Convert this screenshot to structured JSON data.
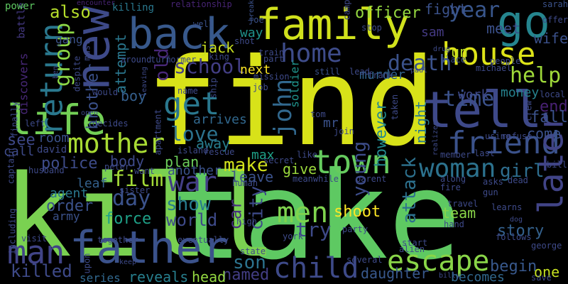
{
  "words": [
    {
      "text": "find",
      "color": "#d8e219"
    },
    {
      "text": "take",
      "color": "#5ec962"
    },
    {
      "text": "kill",
      "color": "#7ad151"
    },
    {
      "text": "father",
      "color": "#3b528b"
    },
    {
      "text": "family",
      "color": "#d0e11c"
    },
    {
      "text": "back",
      "color": "#38598c"
    },
    {
      "text": "tell",
      "color": "#3e4989"
    },
    {
      "text": "go",
      "color": "#25858e"
    },
    {
      "text": "life",
      "color": "#73d056"
    },
    {
      "text": "new",
      "color": "#3e4a89"
    },
    {
      "text": "house",
      "color": "#dde318"
    },
    {
      "text": "home",
      "color": "#3e4c8a"
    },
    {
      "text": "town",
      "color": "#65cb5e"
    },
    {
      "text": "man",
      "color": "#414487"
    },
    {
      "text": "friend",
      "color": "#3b528b"
    },
    {
      "text": "get",
      "color": "#2a788e"
    },
    {
      "text": "mother",
      "color": "#a8db34"
    },
    {
      "text": "escape",
      "color": "#89d548"
    },
    {
      "text": "later",
      "color": "#414487"
    },
    {
      "text": "return",
      "color": "#2a788e"
    },
    {
      "text": "war",
      "color": "#433e85"
    },
    {
      "text": "men",
      "color": "#7fd34e"
    },
    {
      "text": "woman",
      "color": "#2c728e"
    },
    {
      "text": "child",
      "color": "#3e4a89"
    },
    {
      "text": "death",
      "color": "#3b528b"
    },
    {
      "text": "john",
      "color": "#31688e"
    },
    {
      "text": "time",
      "color": "#3b528b"
    },
    {
      "text": "year",
      "color": "#39568c"
    },
    {
      "text": "help",
      "color": "#9fda3a"
    },
    {
      "text": "group",
      "color": "#8bd646"
    },
    {
      "text": "film",
      "color": "#a2da37"
    },
    {
      "text": "day",
      "color": "#3b528b"
    },
    {
      "text": "school",
      "color": "#433e85"
    },
    {
      "text": "love",
      "color": "#2c728e"
    },
    {
      "text": "killed",
      "color": "#3e4a89"
    },
    {
      "text": "make",
      "color": "#d2e21b"
    },
    {
      "text": "city",
      "color": "#3e4a89"
    },
    {
      "text": "try",
      "color": "#3e4a89"
    },
    {
      "text": "attack",
      "color": "#2d718e"
    },
    {
      "text": "show",
      "color": "#287c8e"
    },
    {
      "text": "girl",
      "color": "#2e6d8e"
    },
    {
      "text": "old",
      "color": "#482878"
    },
    {
      "text": "see",
      "color": "#3e4989"
    },
    {
      "text": "police",
      "color": "#3e4c8a"
    },
    {
      "text": "son",
      "color": "#2c738e"
    },
    {
      "text": "world",
      "color": "#3e4a89"
    },
    {
      "text": "young",
      "color": "#3d4d8a"
    },
    {
      "text": "car",
      "color": "#46307e"
    },
    {
      "text": "also",
      "color": "#b5de2b"
    },
    {
      "text": "brother",
      "color": "#3b518b"
    },
    {
      "text": "attempt",
      "color": "#2a778e"
    },
    {
      "text": "force",
      "color": "#1fa188"
    },
    {
      "text": "story",
      "color": "#34618d"
    },
    {
      "text": "end",
      "color": "#482173"
    },
    {
      "text": "fall",
      "color": "#3b528b"
    },
    {
      "text": "begin",
      "color": "#38588c"
    },
    {
      "text": "order",
      "color": "#3b528b"
    },
    {
      "text": "officer",
      "color": "#95d840"
    },
    {
      "text": "fight",
      "color": "#3b528b"
    },
    {
      "text": "meet",
      "color": "#3b518b"
    },
    {
      "text": "wife",
      "color": "#3b518b"
    },
    {
      "text": "jack",
      "color": "#c8e020"
    },
    {
      "text": "night",
      "color": "#297b8e"
    },
    {
      "text": "shoot",
      "color": "#fde725"
    },
    {
      "text": "however",
      "color": "#23888e"
    },
    {
      "text": "named",
      "color": "#433e85"
    },
    {
      "text": "reveals",
      "color": "#277f8e"
    },
    {
      "text": "daughter",
      "color": "#38588c"
    },
    {
      "text": "becomes",
      "color": "#31688e"
    },
    {
      "text": "head",
      "color": "#93d741"
    },
    {
      "text": "one",
      "color": "#c5e021"
    },
    {
      "text": "another",
      "color": "#3b528b"
    },
    {
      "text": "plan",
      "color": "#6ccd5a"
    },
    {
      "text": "leave",
      "color": "#3b528b"
    },
    {
      "text": "give",
      "color": "#9bd93c"
    },
    {
      "text": "body",
      "color": "#3e4a89"
    },
    {
      "text": "away",
      "color": "#287d8e"
    },
    {
      "text": "boy",
      "color": "#355f8d"
    },
    {
      "text": "next",
      "color": "#fde725"
    },
    {
      "text": "way",
      "color": "#20928c"
    },
    {
      "text": "run",
      "color": "#bddf26"
    },
    {
      "text": "work",
      "color": "#3e4989"
    },
    {
      "text": "money",
      "color": "#26828e"
    },
    {
      "text": "come",
      "color": "#3b528b"
    },
    {
      "text": "team",
      "color": "#89d548"
    },
    {
      "text": "room",
      "color": "#3b528b"
    },
    {
      "text": "call",
      "color": "#3e4a89"
    },
    {
      "text": "leaf",
      "color": "#34618d"
    },
    {
      "text": "agent",
      "color": "#2a788e"
    },
    {
      "text": "army",
      "color": "#3b528b"
    },
    {
      "text": "series",
      "color": "#31688e"
    },
    {
      "text": "murder",
      "color": "#32658e"
    },
    {
      "text": "sam",
      "color": "#443a83"
    },
    {
      "text": "gang",
      "color": "#3b528b"
    },
    {
      "text": "mr",
      "color": "#3b528b"
    },
    {
      "text": "soldier",
      "color": "#1f948c"
    },
    {
      "text": "max",
      "color": "#1fa187"
    },
    {
      "text": "arrives",
      "color": "#31688e"
    },
    {
      "text": "david",
      "color": "#3e4a89"
    },
    {
      "text": "discovers",
      "color": "#482878"
    },
    {
      "text": "battle",
      "color": "#443983"
    },
    {
      "text": "power",
      "color": "#5ec962"
    },
    {
      "text": "killing",
      "color": "#2a788e"
    },
    {
      "text": "relationship",
      "color": "#482475"
    },
    {
      "text": "encounter",
      "color": "#482475"
    },
    {
      "text": "well",
      "color": "#3b528b"
    },
    {
      "text": "joe",
      "color": "#3b528b"
    },
    {
      "text": "break",
      "color": "#3b528b"
    },
    {
      "text": "camp",
      "color": "#3e4a89"
    },
    {
      "text": "sarah",
      "color": "#3b528b"
    },
    {
      "text": "offer",
      "color": "#3e4a89"
    },
    {
      "text": "stop",
      "color": "#3e4a89"
    },
    {
      "text": "drug",
      "color": "#3e4a89"
    },
    {
      "text": "people",
      "color": "#3e4a89"
    },
    {
      "text": "michael",
      "color": "#3e4a89"
    },
    {
      "text": "place",
      "color": "#3b528b"
    },
    {
      "text": "still",
      "color": "#3b528b"
    },
    {
      "text": "lead",
      "color": "#3e4a89"
    },
    {
      "text": "frank",
      "color": "#3e4a89"
    },
    {
      "text": "mission",
      "color": "#3e4a89"
    },
    {
      "text": "train",
      "color": "#3e4a89"
    },
    {
      "text": "part",
      "color": "#3e4a89"
    },
    {
      "text": "shot",
      "color": "#3e4a89"
    },
    {
      "text": "king",
      "color": "#3e4a89"
    },
    {
      "text": "turn",
      "color": "#3e4a89"
    },
    {
      "text": "former",
      "color": "#3e4a89"
    },
    {
      "text": "around",
      "color": "#3e4a89"
    },
    {
      "text": "leaving",
      "color": "#3e4a89"
    },
    {
      "text": "would",
      "color": "#3e4a89"
    },
    {
      "text": "despite",
      "color": "#3e4a89"
    },
    {
      "text": "must",
      "color": "#3e4a89"
    },
    {
      "text": "ship",
      "color": "#3e4a89"
    },
    {
      "text": "name",
      "color": "#3e4a89"
    },
    {
      "text": "job",
      "color": "#3e4a89"
    },
    {
      "text": "finally",
      "color": "#3e4a89"
    },
    {
      "text": "left",
      "color": "#3e4a89"
    },
    {
      "text": "decides",
      "color": "#3e4a89"
    },
    {
      "text": "apartment",
      "color": "#3e4a89"
    },
    {
      "text": "tom",
      "color": "#3e4a89"
    },
    {
      "text": "join",
      "color": "#3e4a89"
    },
    {
      "text": "taken",
      "color": "#3e4a89"
    },
    {
      "text": "realizes",
      "color": "#3e4a89"
    },
    {
      "text": "local",
      "color": "#3e4a89"
    },
    {
      "text": "crew",
      "color": "#3e4a89"
    },
    {
      "text": "using",
      "color": "#3e4a89"
    },
    {
      "text": "refuse",
      "color": "#3e4a89"
    },
    {
      "text": "last",
      "color": "#3e4a89"
    },
    {
      "text": "member",
      "color": "#3e4a89"
    },
    {
      "text": "bill",
      "color": "#3e4a89"
    },
    {
      "text": "dead",
      "color": "#3e4a89"
    },
    {
      "text": "asks",
      "color": "#3e4a89"
    },
    {
      "text": "along",
      "color": "#3e4a89"
    },
    {
      "text": "gun",
      "color": "#3e4a89"
    },
    {
      "text": "fire",
      "color": "#3e4a89"
    },
    {
      "text": "travel",
      "color": "#3e4a89"
    },
    {
      "text": "learns",
      "color": "#3e4a89"
    },
    {
      "text": "hand",
      "color": "#3e4a89"
    },
    {
      "text": "follows",
      "color": "#3e4a89"
    },
    {
      "text": "george",
      "color": "#3e4a89"
    },
    {
      "text": "save",
      "color": "#3e4a89"
    },
    {
      "text": "alien",
      "color": "#3e4a89"
    },
    {
      "text": "start",
      "color": "#3e4a89"
    },
    {
      "text": "york",
      "color": "#3e4a89"
    },
    {
      "text": "party",
      "color": "#3e4a89"
    },
    {
      "text": "several",
      "color": "#3e4a89"
    },
    {
      "text": "billy",
      "color": "#3e4a89"
    },
    {
      "text": "eventually",
      "color": "#3e4a89"
    },
    {
      "text": "state",
      "color": "#3e4a89"
    },
    {
      "text": "high",
      "color": "#3e4a89"
    },
    {
      "text": "human",
      "color": "#3e4a89"
    },
    {
      "text": "meanwhile",
      "color": "#3e4a89"
    },
    {
      "text": "parent",
      "color": "#3e4a89"
    },
    {
      "text": "secret",
      "color": "#3e4a89"
    },
    {
      "text": "like",
      "color": "#3e4a89"
    },
    {
      "text": "island",
      "color": "#3e4a89"
    },
    {
      "text": "rescue",
      "color": "#3e4a89"
    },
    {
      "text": "peter",
      "color": "#3e4a89"
    },
    {
      "text": "want",
      "color": "#3e4a89"
    },
    {
      "text": "sister",
      "color": "#3e4a89"
    },
    {
      "text": "husband",
      "color": "#3e4a89"
    },
    {
      "text": "captain",
      "color": "#3e4a89"
    },
    {
      "text": "including",
      "color": "#3e4a89"
    },
    {
      "text": "visit",
      "color": "#3e4a89"
    },
    {
      "text": "together",
      "color": "#3e4a89"
    },
    {
      "text": "upon",
      "color": "#3e4a89"
    },
    {
      "text": "keep",
      "color": "#3e4a89"
    },
    {
      "text": "paul",
      "color": "#3e4a89"
    },
    {
      "text": "open",
      "color": "#3e4a89"
    },
    {
      "text": "dog",
      "color": "#3e4a89"
    },
    {
      "text": "ben",
      "color": "#3e4a89"
    }
  ]
}
